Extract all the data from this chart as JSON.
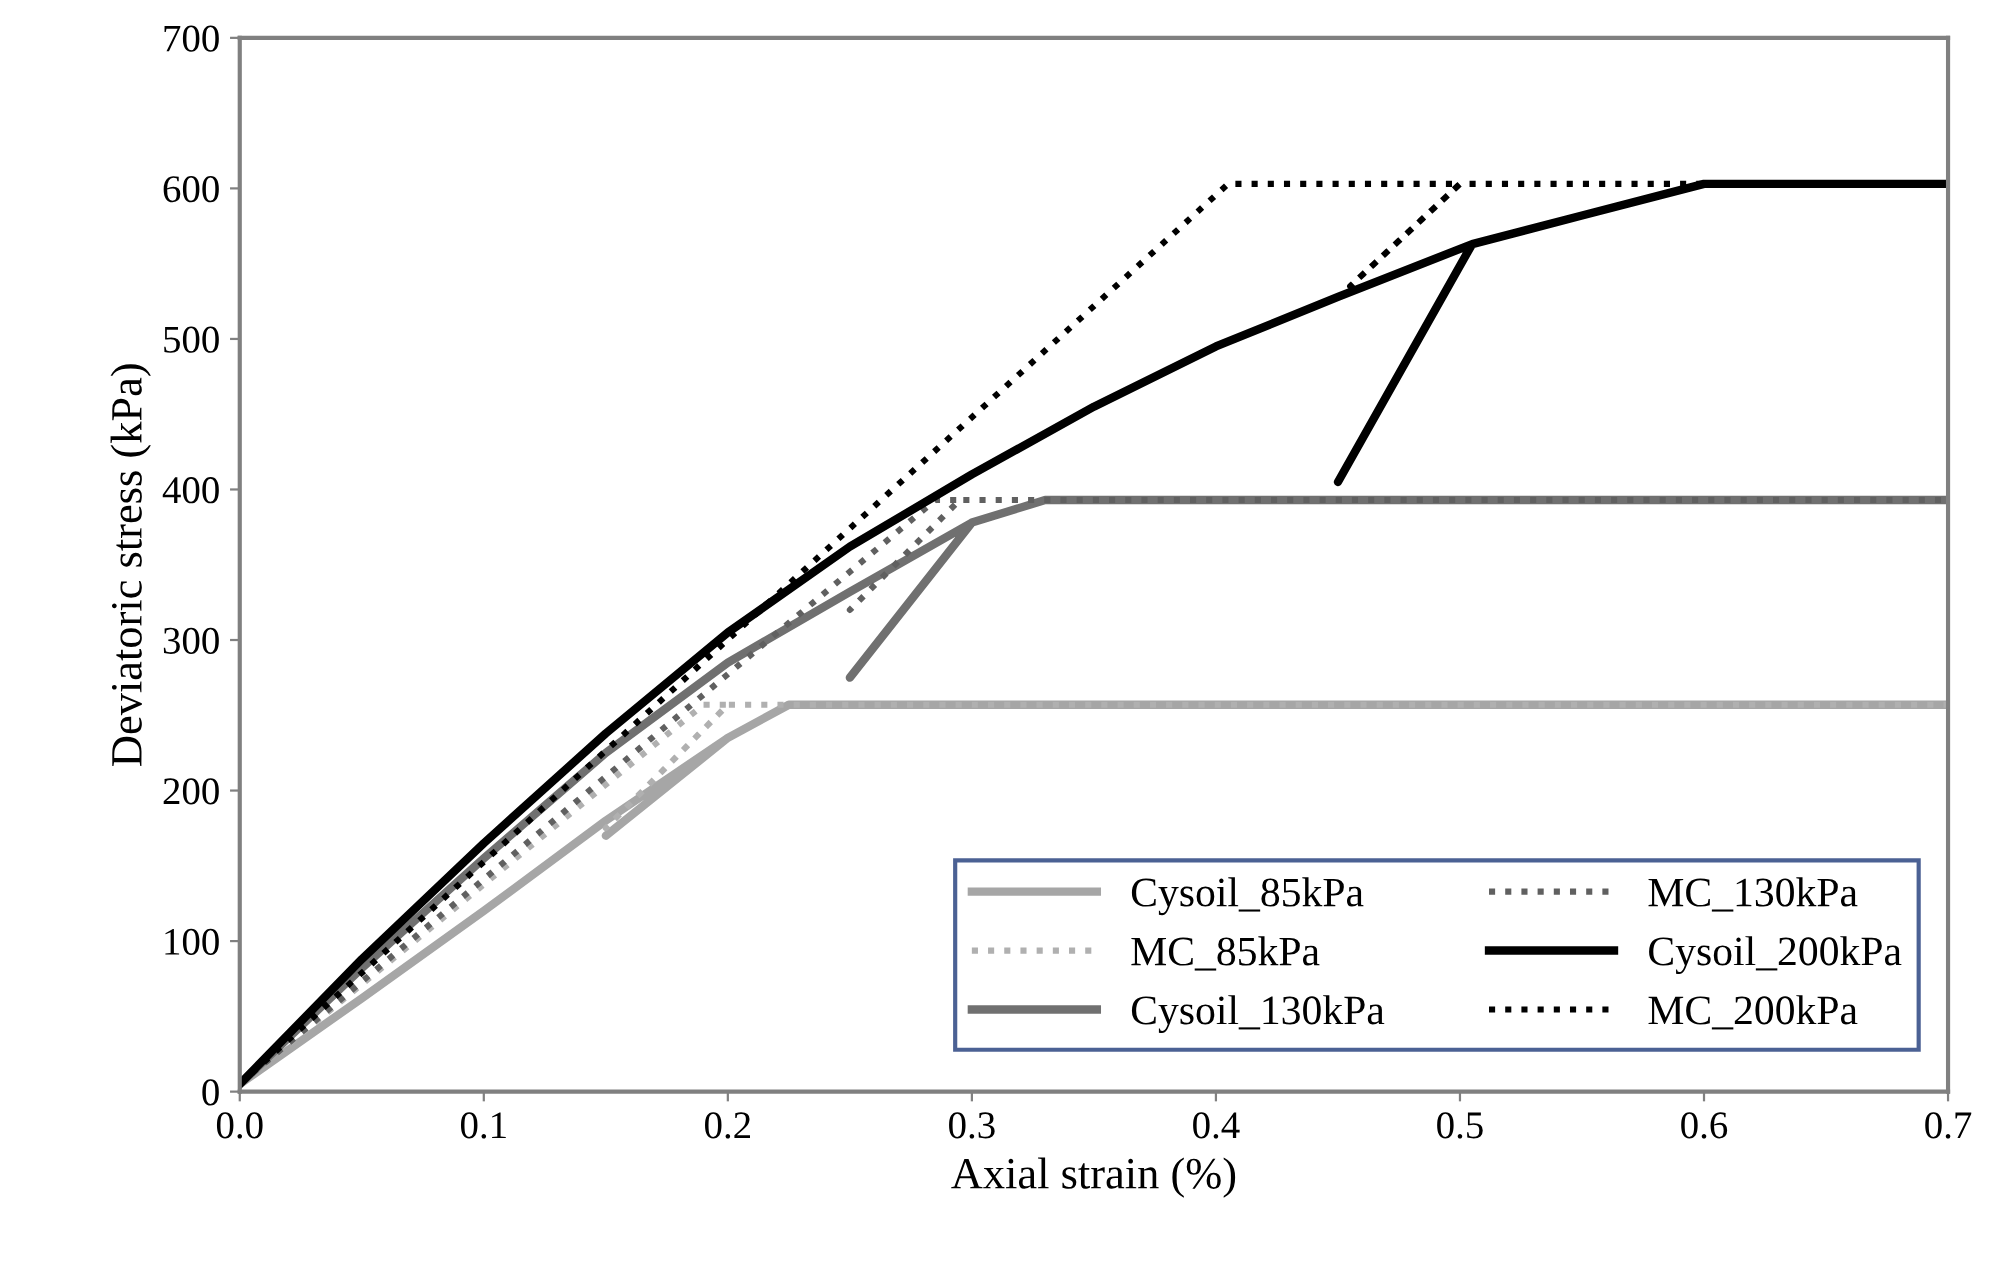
{
  "chart_data": {
    "type": "line",
    "xlabel": "Axial strain (%)",
    "ylabel": "Deviatoric stress (kPa)",
    "xlim": [
      0,
      0.7
    ],
    "ylim": [
      0,
      700
    ],
    "xticks": [
      {
        "value": 0,
        "label": "0.0"
      },
      0.1,
      0.2,
      0.3,
      0.4,
      0.5,
      0.6,
      0.7
    ],
    "yticks": [
      0,
      100,
      200,
      300,
      400,
      500,
      600,
      700
    ],
    "grid": false,
    "legend": "bottom right",
    "marker": "none",
    "series": [
      {
        "name": "Cysoil_85kPa",
        "color": "#a6a6a6",
        "line_style": "solid",
        "x": [
          0,
          0.05,
          0.1,
          0.15,
          0.2,
          0.15,
          0.2,
          0.225,
          0.7
        ],
        "values": [
          5,
          62,
          120,
          180,
          235,
          170,
          235,
          257,
          257
        ]
      },
      {
        "name": "MC_85kPa",
        "color": "#b0b0b0",
        "line_style": "dotted",
        "x": [
          0,
          0.19,
          0.2,
          0.15,
          0.2,
          0.7
        ],
        "values": [
          5,
          257,
          257,
          175,
          257,
          257
        ]
      },
      {
        "name": "Cysoil_130kPa",
        "color": "#707070",
        "line_style": "solid",
        "x": [
          0,
          0.05,
          0.1,
          0.15,
          0.2,
          0.25,
          0.3,
          0.25,
          0.3,
          0.33,
          0.7
        ],
        "values": [
          5,
          82,
          155,
          225,
          285,
          332,
          378,
          275,
          378,
          393,
          393
        ]
      },
      {
        "name": "MC_130kPa",
        "color": "#606060",
        "line_style": "dotted",
        "x": [
          0,
          0.285,
          0.295,
          0.25,
          0.295,
          0.7
        ],
        "values": [
          5,
          393,
          393,
          320,
          393,
          393
        ]
      },
      {
        "name": "Cysoil_200kPa",
        "color": "#000000",
        "line_style": "solid",
        "x": [
          0,
          0.05,
          0.1,
          0.15,
          0.2,
          0.25,
          0.3,
          0.35,
          0.4,
          0.45,
          0.505,
          0.45,
          0.505,
          0.55,
          0.6,
          0.7
        ],
        "values": [
          5,
          88,
          165,
          238,
          305,
          362,
          410,
          455,
          495,
          528,
          563,
          405,
          563,
          582,
          603,
          603
        ]
      },
      {
        "name": "MC_200kPa",
        "color": "#000000",
        "line_style": "dotted",
        "x": [
          0,
          0.405,
          0.5,
          0.455,
          0.5,
          0.7
        ],
        "values": [
          5,
          603,
          603,
          535,
          603,
          603
        ]
      }
    ]
  }
}
